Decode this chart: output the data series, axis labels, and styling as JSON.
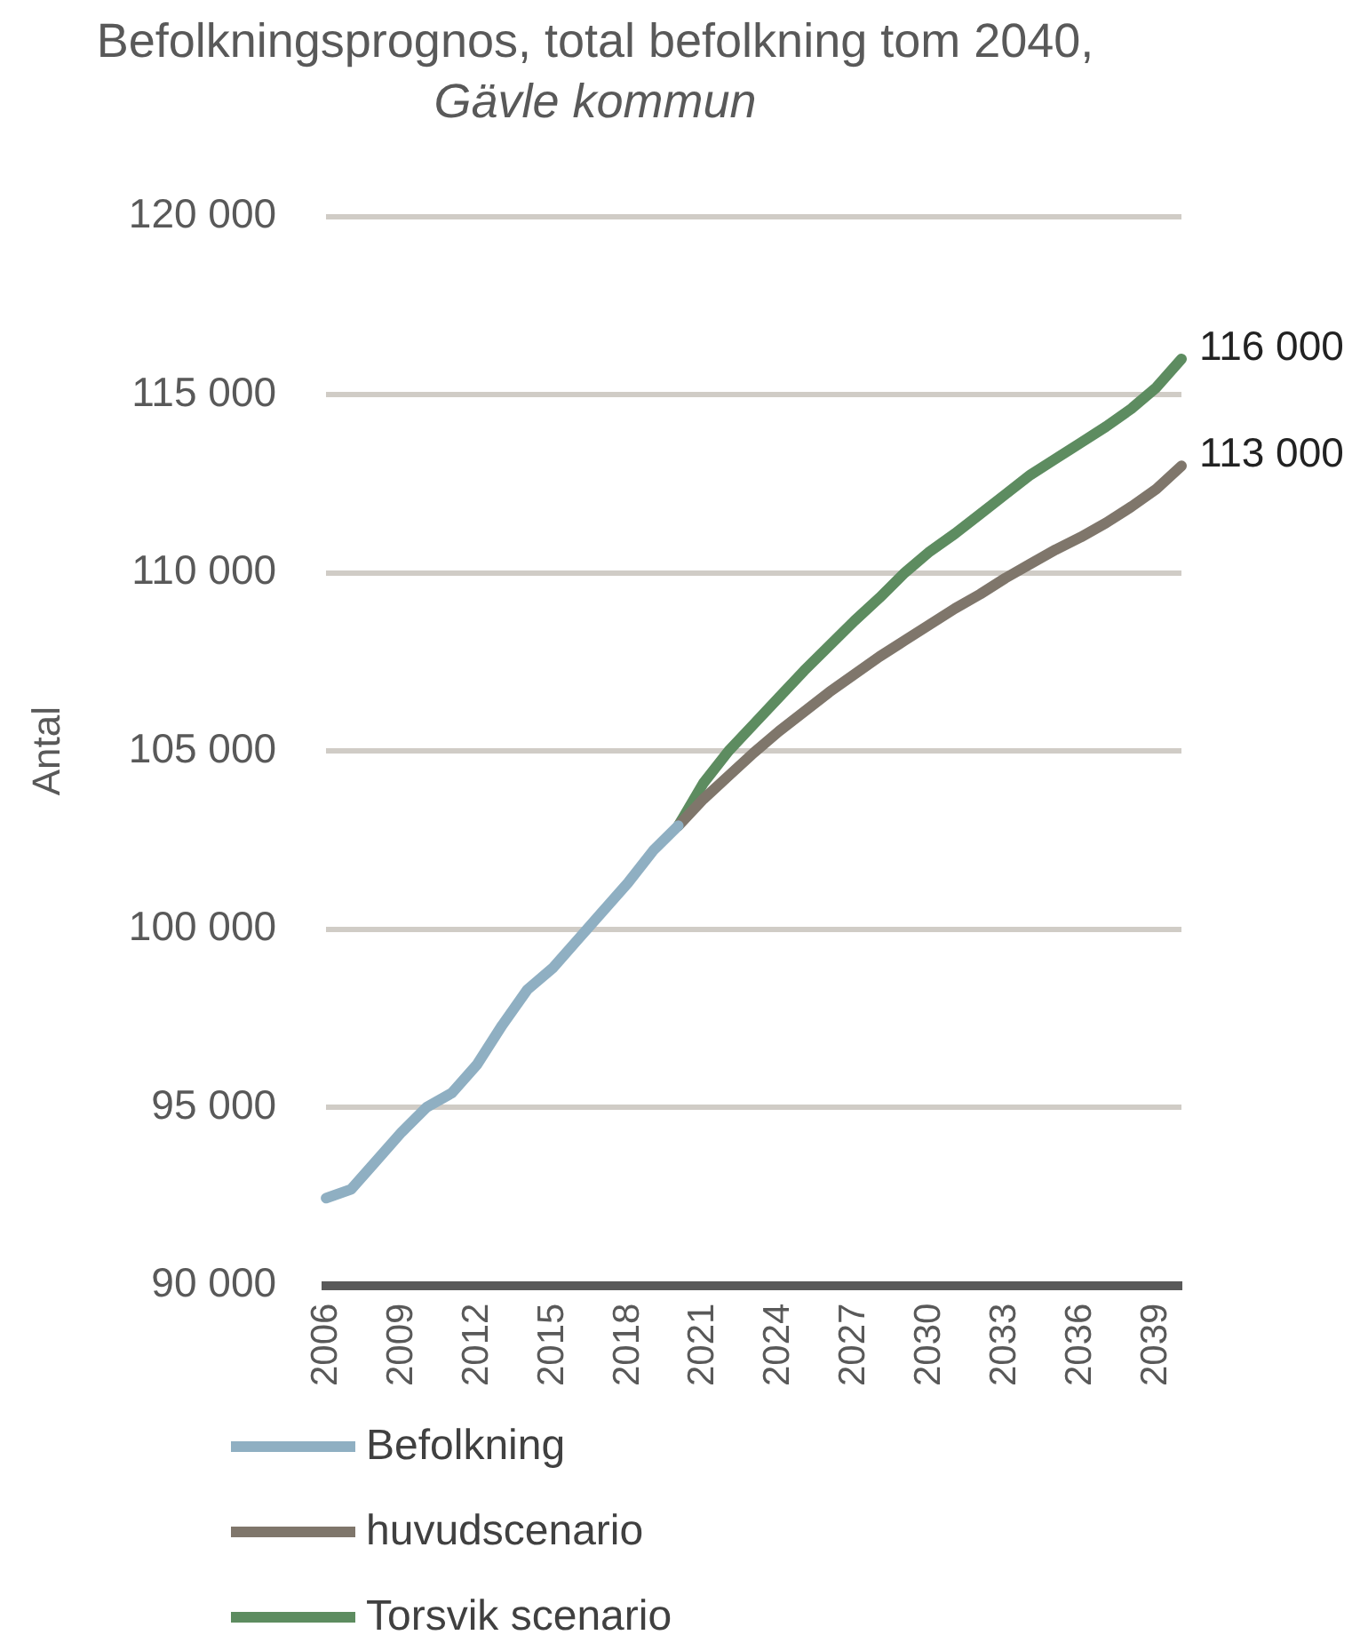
{
  "chart_data": {
    "type": "line",
    "title": "Befolkningsprognos, total befolkning tom 2040, Gävle kommun",
    "ylabel": "Antal",
    "categories": [
      "2006",
      null,
      null,
      "2009",
      null,
      null,
      "2012",
      null,
      null,
      "2015",
      null,
      null,
      "2018",
      null,
      null,
      "2021",
      null,
      null,
      "2024",
      null,
      null,
      "2027",
      null,
      null,
      "2030",
      null,
      null,
      "2033",
      null,
      null,
      "2036",
      null,
      null,
      "2039",
      null
    ],
    "ylim": [
      90000,
      120000
    ],
    "yticks": [
      {
        "value": 90000,
        "label": "90 000"
      },
      {
        "value": 95000,
        "label": "95 000"
      },
      {
        "value": 100000,
        "label": "100 000"
      },
      {
        "value": 105000,
        "label": "105 000"
      },
      {
        "value": 110000,
        "label": "110 000"
      },
      {
        "value": 115000,
        "label": "115 000"
      },
      {
        "value": 120000,
        "label": "120 000"
      }
    ],
    "grid": "y",
    "legend": "bottom",
    "marker": "none",
    "line_style": "solid",
    "series": [
      {
        "name": "Befolkning",
        "color": "#8fafc2",
        "values": [
          92450,
          92700,
          93500,
          94300,
          95000,
          95400,
          96200,
          97300,
          98300,
          98900,
          99700,
          100500,
          101300,
          102200,
          102900,
          null,
          null,
          null,
          null,
          null,
          null,
          null,
          null,
          null,
          null,
          null,
          null,
          null,
          null,
          null,
          null,
          null,
          null,
          null,
          null
        ]
      },
      {
        "name": "huvudscenario",
        "color": "#7f766b",
        "values": [
          null,
          null,
          null,
          null,
          null,
          null,
          null,
          null,
          null,
          null,
          null,
          null,
          null,
          null,
          102900,
          103650,
          104300,
          104950,
          105550,
          106100,
          106650,
          107150,
          107650,
          108100,
          108550,
          109000,
          109400,
          109850,
          110250,
          110650,
          111000,
          111400,
          111850,
          112350,
          113000
        ],
        "value_labels": [
          null,
          null,
          null,
          null,
          null,
          null,
          null,
          null,
          null,
          null,
          null,
          null,
          null,
          null,
          null,
          null,
          null,
          null,
          null,
          null,
          null,
          null,
          null,
          null,
          null,
          null,
          null,
          null,
          null,
          null,
          null,
          null,
          null,
          null,
          "113 000"
        ]
      },
      {
        "name": "Torsvik scenario",
        "color": "#5d8c60",
        "values": [
          null,
          null,
          null,
          null,
          null,
          null,
          null,
          null,
          null,
          null,
          null,
          null,
          null,
          null,
          102900,
          104100,
          105000,
          105750,
          106500,
          107250,
          107950,
          108650,
          109300,
          110000,
          110600,
          111100,
          111650,
          112200,
          112750,
          113200,
          113650,
          114100,
          114600,
          115200,
          116000
        ],
        "value_labels": [
          null,
          null,
          null,
          null,
          null,
          null,
          null,
          null,
          null,
          null,
          null,
          null,
          null,
          null,
          null,
          null,
          null,
          null,
          null,
          null,
          null,
          null,
          null,
          null,
          null,
          null,
          null,
          null,
          null,
          null,
          null,
          null,
          null,
          null,
          "116 000"
        ]
      }
    ]
  }
}
